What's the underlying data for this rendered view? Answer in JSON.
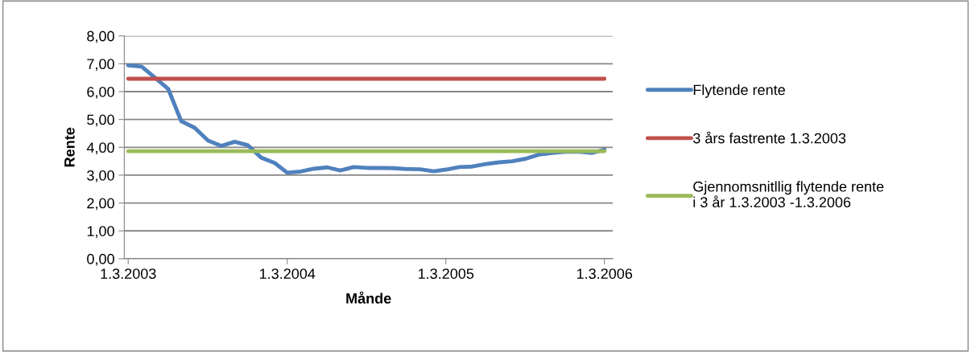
{
  "chart_data": {
    "type": "line",
    "xlabel": "Månde",
    "ylabel": "Rente",
    "x": [
      "2003-03",
      "2003-04",
      "2003-05",
      "2003-06",
      "2003-07",
      "2003-08",
      "2003-09",
      "2003-10",
      "2003-11",
      "2003-12",
      "2004-01",
      "2004-02",
      "2004-03",
      "2004-04",
      "2004-05",
      "2004-06",
      "2004-07",
      "2004-08",
      "2004-09",
      "2004-10",
      "2004-11",
      "2004-12",
      "2005-01",
      "2005-02",
      "2005-03",
      "2005-04",
      "2005-05",
      "2005-06",
      "2005-07",
      "2005-08",
      "2005-09",
      "2005-10",
      "2005-11",
      "2005-12",
      "2006-01",
      "2006-02",
      "2006-03"
    ],
    "series": [
      {
        "name": "Flytende rente",
        "color": "#4f81bd",
        "values": [
          6.94,
          6.9,
          6.51,
          6.1,
          4.94,
          4.7,
          4.24,
          4.05,
          4.2,
          4.08,
          3.63,
          3.44,
          3.09,
          3.13,
          3.23,
          3.28,
          3.17,
          3.29,
          3.26,
          3.26,
          3.25,
          3.22,
          3.21,
          3.14,
          3.2,
          3.29,
          3.31,
          3.4,
          3.46,
          3.5,
          3.59,
          3.74,
          3.8,
          3.84,
          3.84,
          3.8,
          3.92
        ]
      },
      {
        "name": "3 års fastrente 1.3.2003",
        "color": "#c0504d",
        "x": [
          "2003-03",
          "2006-03"
        ],
        "values": [
          6.46,
          6.46
        ]
      },
      {
        "name": "Gjennomsnitllig flytende rente\ni 3 år 1.3.2003 -1.3.2006",
        "color": "#9bbb59",
        "x": [
          "2003-03",
          "2006-03"
        ],
        "values": [
          3.86,
          3.86
        ]
      }
    ],
    "xlim": [
      "2003-02-20",
      "2006-03-20"
    ],
    "xticks": [
      {
        "value": "2003-03-01",
        "label": "1.3.2003"
      },
      {
        "value": "2004-03-01",
        "label": "1.3.2004"
      },
      {
        "value": "2005-03-01",
        "label": "1.3.2005"
      },
      {
        "value": "2006-03-01",
        "label": "1.3.2006"
      }
    ],
    "ylim": [
      0,
      8
    ],
    "yticks": [
      {
        "value": 0,
        "label": "0,00"
      },
      {
        "value": 1,
        "label": "1,00"
      },
      {
        "value": 2,
        "label": "2,00"
      },
      {
        "value": 3,
        "label": "3,00"
      },
      {
        "value": 4,
        "label": "4,00"
      },
      {
        "value": 5,
        "label": "5,00"
      },
      {
        "value": 6,
        "label": "6,00"
      },
      {
        "value": 7,
        "label": "7,00"
      },
      {
        "value": 8,
        "label": "8,00"
      }
    ],
    "grid": "y",
    "legend": "right",
    "marker": "none",
    "line_style": "solid"
  }
}
